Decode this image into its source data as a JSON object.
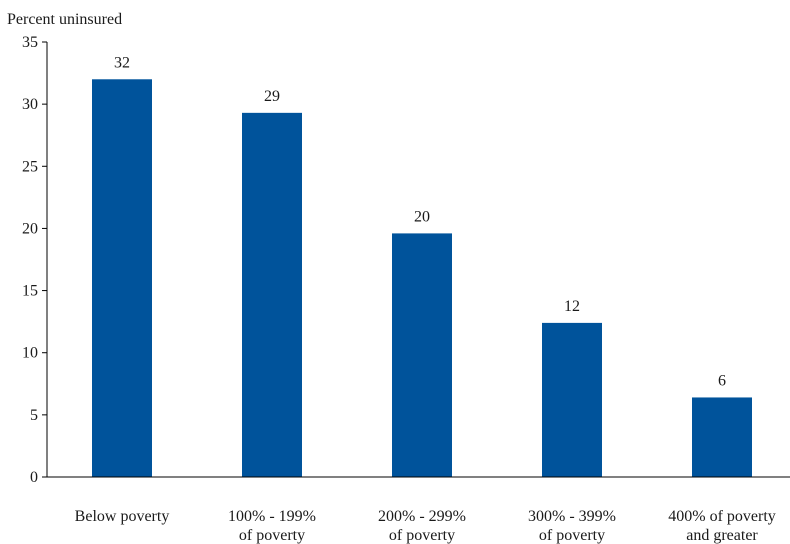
{
  "chart_data": {
    "type": "bar",
    "ylabel": "Percent uninsured",
    "categories": [
      [
        "Below poverty"
      ],
      [
        "100% - 199%",
        "of poverty"
      ],
      [
        "200% - 299%",
        "of poverty"
      ],
      [
        "300% - 399%",
        "of poverty"
      ],
      [
        "400% of poverty",
        "and greater"
      ]
    ],
    "values": [
      32,
      29.3,
      19.6,
      12.4,
      6.4
    ],
    "data_labels": [
      "32",
      "29",
      "20",
      "12",
      "6"
    ],
    "ylim": [
      0,
      35
    ],
    "yticks": [
      0,
      5,
      10,
      15,
      20,
      25,
      30,
      35
    ],
    "grid": false,
    "legend": "none",
    "bar_color": "#00539b"
  }
}
